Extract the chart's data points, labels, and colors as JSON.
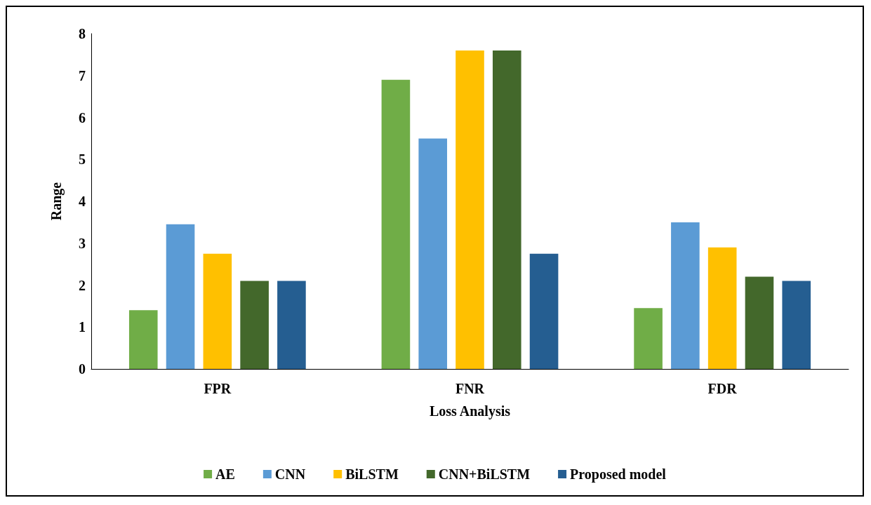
{
  "chart_data": {
    "type": "bar",
    "xlabel": "Loss Analysis",
    "ylabel": "Range",
    "categories": [
      "FPR",
      "FNR",
      "FDR"
    ],
    "series": [
      {
        "name": "AE",
        "color": "#70ad47",
        "values": [
          1.4,
          6.9,
          1.45
        ]
      },
      {
        "name": "CNN",
        "color": "#5b9bd5",
        "values": [
          3.45,
          5.5,
          3.5
        ]
      },
      {
        "name": "BiLSTM",
        "color": "#ffc000",
        "values": [
          2.75,
          7.6,
          2.9
        ]
      },
      {
        "name": "CNN+BiLSTM",
        "color": "#43682b",
        "values": [
          2.1,
          7.6,
          2.2
        ]
      },
      {
        "name": "Proposed model",
        "color": "#255e91",
        "values": [
          2.1,
          2.75,
          2.1
        ]
      }
    ],
    "ylim": [
      0,
      8
    ],
    "yticks": [
      0,
      1,
      2,
      3,
      4,
      5,
      6,
      7,
      8
    ],
    "grid": false,
    "legend": "bottom"
  }
}
